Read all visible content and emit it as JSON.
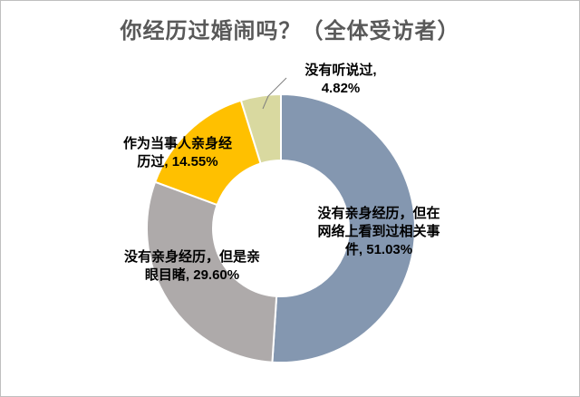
{
  "chart_data": {
    "type": "pie",
    "donut": true,
    "title": "你经历过婚闹吗？（全体受访者）",
    "slices": [
      {
        "label": "没有亲身经历，但在网络上看到过相关事件",
        "value": 51.03,
        "display": "51.03%",
        "color": "#8497b0"
      },
      {
        "label": "没有亲身经历，但是亲眼目睹",
        "value": 29.6,
        "display": "29.60%",
        "color": "#aeaaaa"
      },
      {
        "label": "作为当事人亲身经历过",
        "value": 14.55,
        "display": "14.55%",
        "color": "#ffc000"
      },
      {
        "label": "没有听说过",
        "value": 4.82,
        "display": "4.82%",
        "color": "#d9d9a0"
      }
    ]
  },
  "label_lines": [
    [
      "没有亲身经历，但在",
      "网络上看到过相关事",
      "件, 51.03%"
    ],
    [
      "没有亲身经历，但是亲",
      "眼目睹, 29.60%"
    ],
    [
      "作为当事人亲身经",
      "历过, 14.55%"
    ],
    [
      "没有听说过,",
      "4.82%"
    ]
  ]
}
